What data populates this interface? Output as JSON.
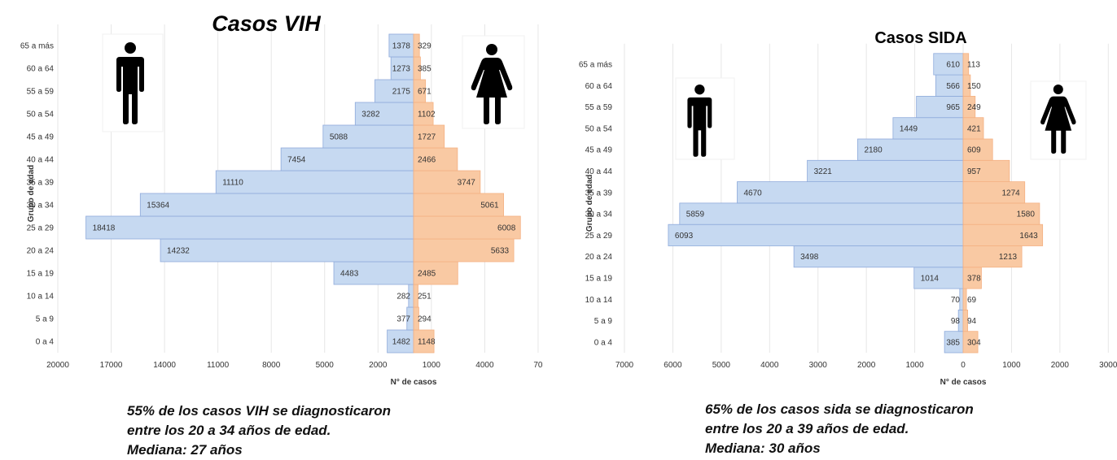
{
  "chart_data": [
    {
      "type": "bar",
      "title": "Casos VIH",
      "xlabel": "N° de casos",
      "ylabel": "Grupo de edad",
      "categories": [
        "0 a 4",
        "5 a 9",
        "10 a 14",
        "15 a 19",
        "20 a 24",
        "25 a 29",
        "30 a 34",
        "35 a 39",
        "40 a 44",
        "45 a 49",
        "50 a 54",
        "55 a 59",
        "60 a 64",
        "65 a más"
      ],
      "series": [
        {
          "values": [
            1482,
            377,
            282,
            4483,
            14232,
            18418,
            15364,
            11110,
            7454,
            5088,
            3282,
            2175,
            1273,
            1378
          ],
          "color": "#c6d9f1"
        },
        {
          "values": [
            1148,
            294,
            251,
            2485,
            5633,
            6008,
            5061,
            3747,
            2466,
            1727,
            1102,
            671,
            385,
            329
          ],
          "color": "#f9c9a3"
        }
      ],
      "xticks": [
        "20000",
        "17000",
        "14000",
        "11000",
        "8000",
        "5000",
        "2000",
        "1000",
        "4000",
        "70"
      ],
      "grid": true
    },
    {
      "type": "bar",
      "title": "Casos SIDA",
      "xlabel": "N° de casos",
      "ylabel": "Grupo de edad",
      "categories": [
        "0 a 4",
        "5 a 9",
        "10 a 14",
        "15 a 19",
        "20 a 24",
        "25 a 29",
        "30 a 34",
        "35 a 39",
        "40 a 44",
        "45 a 49",
        "50 a 54",
        "55 a 59",
        "60 a 64",
        "65 a más"
      ],
      "series": [
        {
          "values": [
            385,
            98,
            70,
            1014,
            3498,
            6093,
            5859,
            4670,
            3221,
            2180,
            1449,
            965,
            566,
            610
          ],
          "color": "#c6d9f1"
        },
        {
          "values": [
            304,
            94,
            69,
            378,
            1213,
            1643,
            1580,
            1274,
            957,
            609,
            421,
            249,
            150,
            113
          ],
          "color": "#f9c9a3"
        }
      ],
      "xticks": [
        "7000",
        "6000",
        "5000",
        "4000",
        "3000",
        "2000",
        "1000",
        "0",
        "1000",
        "2000",
        "3000"
      ],
      "grid": true
    }
  ],
  "captions": {
    "vih": [
      "55% de los casos VIH se diagnosticaron",
      "entre los 20 a 34 años de edad.",
      "Mediana: 27 años"
    ],
    "sida": [
      "65% de los casos sida se diagnosticaron",
      "entre los 20 a 39 años de edad.",
      "Mediana: 30 años"
    ]
  },
  "icons": {
    "male": "man-icon",
    "female": "woman-icon"
  }
}
